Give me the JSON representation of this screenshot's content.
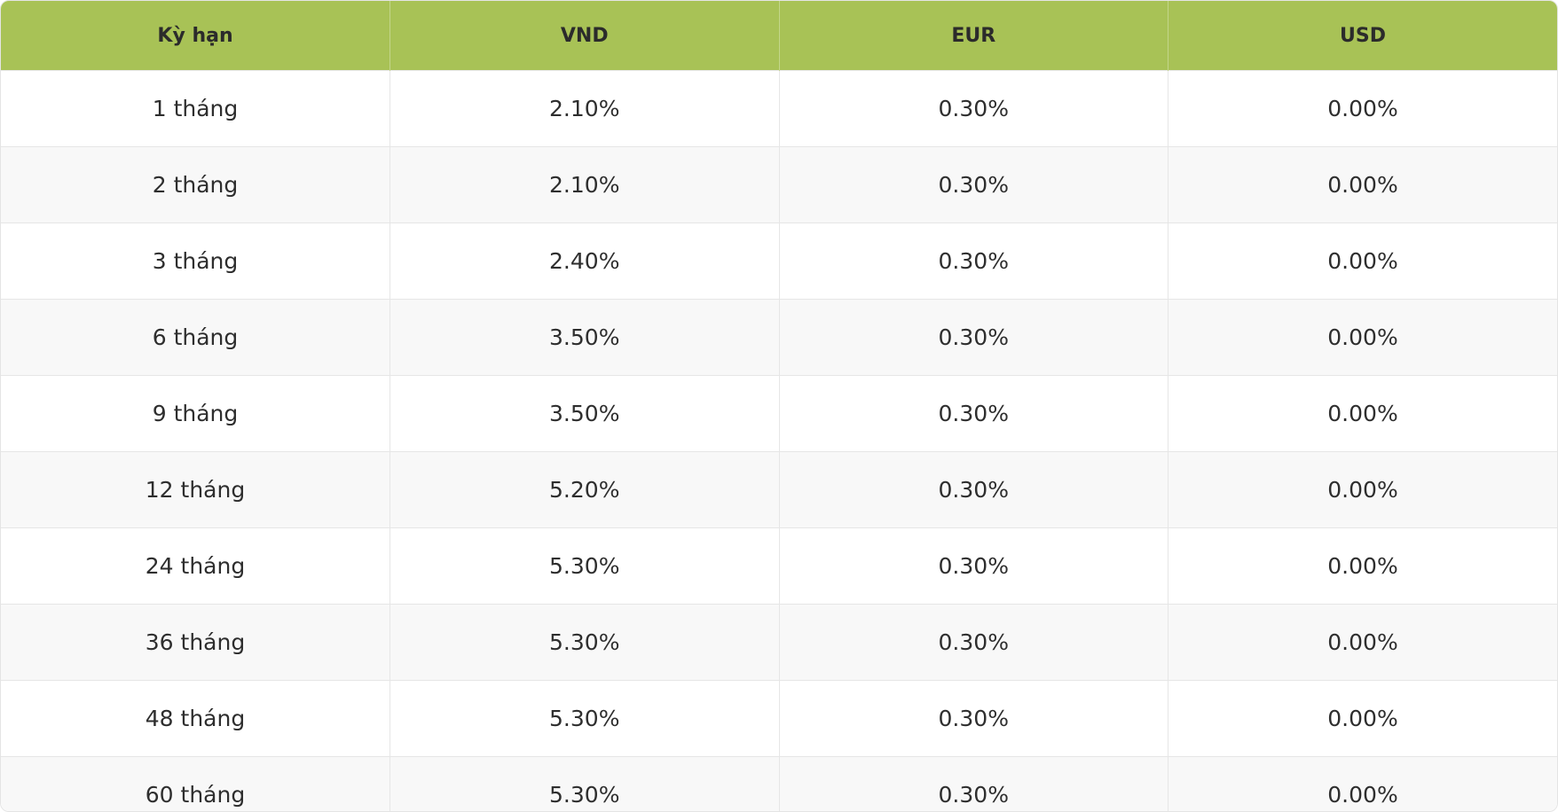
{
  "table": {
    "header": [
      "Kỳ hạn",
      "VND",
      "EUR",
      "USD"
    ],
    "rows": [
      [
        "1 tháng",
        "2.10%",
        "0.30%",
        "0.00%"
      ],
      [
        "2 tháng",
        "2.10%",
        "0.30%",
        "0.00%"
      ],
      [
        "3 tháng",
        "2.40%",
        "0.30%",
        "0.00%"
      ],
      [
        "6 tháng",
        "3.50%",
        "0.30%",
        "0.00%"
      ],
      [
        "9 tháng",
        "3.50%",
        "0.30%",
        "0.00%"
      ],
      [
        "12 tháng",
        "5.20%",
        "0.30%",
        "0.00%"
      ],
      [
        "24 tháng",
        "5.30%",
        "0.30%",
        "0.00%"
      ],
      [
        "36 tháng",
        "5.30%",
        "0.30%",
        "0.00%"
      ],
      [
        "48 tháng",
        "5.30%",
        "0.30%",
        "0.00%"
      ],
      [
        "60 tháng",
        "5.30%",
        "0.30%",
        "0.00%"
      ]
    ]
  }
}
